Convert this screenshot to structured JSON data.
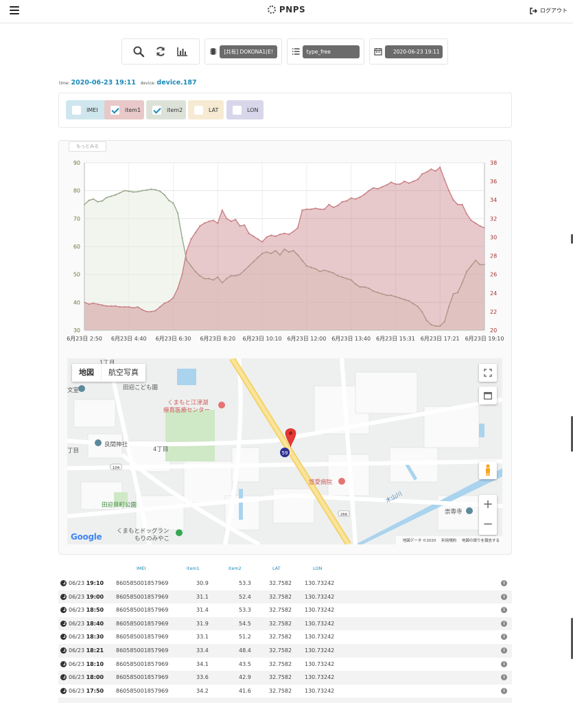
{
  "header": {
    "brand": "PNPS",
    "logout": "ログアウト"
  },
  "toolbar": {
    "icons": [
      "search-icon",
      "refresh-icon",
      "bar-chart-icon"
    ],
    "device_select": "[共有] DOKONA1(E!",
    "type_select": "type_free",
    "date_select": "2020-06-23 19:11"
  },
  "meta": {
    "time_label": "time:",
    "time_value": "2020-06-23 19:11",
    "device_label": "device:",
    "device_value": "device.187"
  },
  "checkboxes": [
    {
      "label": "IMEI",
      "checked": false,
      "color": "#cfe6ee"
    },
    {
      "label": "item1",
      "checked": true,
      "color": "#e8c8c8"
    },
    {
      "label": "item2",
      "checked": true,
      "color": "#dde2d8"
    },
    {
      "label": "LAT",
      "checked": false,
      "color": "#f6ead2"
    },
    {
      "label": "LON",
      "checked": false,
      "color": "#d8d6ea"
    }
  ],
  "more_button": "もっとみる",
  "chart_data": {
    "type": "area",
    "x_ticks": [
      "6月23日 2:50",
      "6月23日 4:40",
      "6月23日 6:30",
      "6月23日 8:20",
      "6月23日 10:10",
      "6月23日 12:00",
      "6月23日 13:40",
      "6月23日 15:31",
      "6月23日 17:21",
      "6月23日 19:10"
    ],
    "ylim_left": [
      30,
      90
    ],
    "yticks_left": [
      30,
      40,
      50,
      60,
      70,
      80,
      90
    ],
    "ylim_right": [
      20,
      38
    ],
    "yticks_right": [
      20,
      22,
      24,
      26,
      28,
      30,
      32,
      34,
      36,
      38
    ],
    "grid": true,
    "series": [
      {
        "name": "item1",
        "axis": "right",
        "color": "#c97f84",
        "values": [
          23.0,
          22.8,
          22.9,
          22.8,
          22.7,
          22.6,
          22.6,
          22.6,
          22.5,
          22.5,
          22.5,
          22.4,
          22.5,
          22.2,
          22.0,
          22.0,
          22.1,
          22.5,
          22.9,
          23.1,
          23.5,
          24.5,
          26.0,
          28.5,
          29.8,
          30.5,
          31.2,
          31.5,
          31.7,
          31.8,
          31.5,
          32.9,
          32.0,
          31.7,
          31.9,
          31.2,
          31.3,
          30.4,
          30.1,
          29.8,
          29.5,
          30.0,
          30.2,
          30.1,
          30.3,
          30.4,
          30.3,
          30.6,
          31.0,
          32.9,
          33.0,
          33.0,
          33.1,
          33.0,
          33.0,
          33.5,
          33.2,
          33.4,
          33.8,
          33.9,
          34.2,
          34.1,
          34.3,
          34.6,
          35.0,
          35.3,
          35.2,
          35.4,
          35.6,
          35.9,
          35.7,
          35.7,
          36.0,
          35.8,
          36.0,
          36.2,
          36.8,
          37.0,
          37.3,
          37.1,
          37.5,
          36.2,
          35.0,
          34.0,
          33.5,
          33.5,
          32.5,
          31.8,
          31.5,
          31.2,
          31.0
        ]
      },
      {
        "name": "item2",
        "axis": "left",
        "color": "#98a88c",
        "values": [
          75.0,
          76.5,
          77.0,
          76.0,
          76.3,
          77.5,
          78.0,
          78.5,
          79.2,
          80.0,
          79.8,
          79.5,
          79.6,
          80.0,
          80.2,
          80.5,
          80.3,
          79.8,
          78.5,
          76.5,
          75.5,
          72.0,
          63.0,
          55.0,
          53.0,
          51.0,
          49.5,
          48.5,
          48.5,
          48.0,
          49.0,
          47.0,
          48.5,
          49.5,
          49.5,
          50.0,
          51.5,
          53.0,
          54.5,
          56.0,
          57.5,
          58.0,
          57.5,
          58.5,
          57.0,
          59.0,
          58.0,
          58.5,
          57.0,
          55.0,
          53.0,
          52.5,
          52.0,
          51.0,
          51.5,
          51.0,
          50.5,
          49.5,
          49.0,
          48.5,
          48.0,
          46.5,
          45.5,
          45.5,
          45.0,
          44.0,
          43.5,
          43.0,
          42.5,
          42.5,
          42.0,
          41.5,
          41.0,
          40.5,
          39.5,
          38.5,
          36.5,
          33.5,
          32.0,
          31.5,
          31.5,
          33.0,
          38.5,
          43.0,
          43.5,
          47.0,
          51.0,
          53.0,
          55.0,
          53.5,
          53.5
        ]
      }
    ]
  },
  "map": {
    "type_buttons": [
      "地図",
      "航空写真"
    ],
    "labels": [
      "田迎こども園",
      "くまもと江津湖",
      "療育医療センター",
      "良間神社",
      "4丁目",
      "田迎良町公園",
      "悠愛病院",
      "木山川",
      "崇専寺",
      "くまもとドッグラン",
      "もりのみやこ",
      "文室",
      "1丁目",
      "丁目"
    ],
    "marker_number": "59",
    "road_badges": [
      "104",
      "266"
    ],
    "google": "Google",
    "attribution": [
      "地図データ ©2020",
      "利用規約",
      "地図の誤りを報告する"
    ]
  },
  "table": {
    "headers": [
      "IMEI",
      "item1",
      "item2",
      "LAT",
      "LON"
    ],
    "rows": [
      {
        "date": "06/23",
        "time": "19:10",
        "imei": "860585001857969",
        "item1": "30.9",
        "item2": "53.3",
        "lat": "32.7582",
        "lon": "130.73242"
      },
      {
        "date": "06/23",
        "time": "19:00",
        "imei": "860585001857969",
        "item1": "31.1",
        "item2": "52.4",
        "lat": "32.7582",
        "lon": "130.73242"
      },
      {
        "date": "06/23",
        "time": "18:50",
        "imei": "860585001857969",
        "item1": "31.4",
        "item2": "53.3",
        "lat": "32.7582",
        "lon": "130.73242"
      },
      {
        "date": "06/23",
        "time": "18:40",
        "imei": "860585001857969",
        "item1": "31.9",
        "item2": "54.5",
        "lat": "32.7582",
        "lon": "130.73242"
      },
      {
        "date": "06/23",
        "time": "18:30",
        "imei": "860585001857969",
        "item1": "33.1",
        "item2": "51.2",
        "lat": "32.7582",
        "lon": "130.73242"
      },
      {
        "date": "06/23",
        "time": "18:21",
        "imei": "860585001857969",
        "item1": "33.4",
        "item2": "48.4",
        "lat": "32.7582",
        "lon": "130.73242"
      },
      {
        "date": "06/23",
        "time": "18:10",
        "imei": "860585001857969",
        "item1": "34.1",
        "item2": "43.5",
        "lat": "32.7582",
        "lon": "130.73242"
      },
      {
        "date": "06/23",
        "time": "18:00",
        "imei": "860585001857969",
        "item1": "33.6",
        "item2": "42.9",
        "lat": "32.7582",
        "lon": "130.73242"
      },
      {
        "date": "06/23",
        "time": "17:50",
        "imei": "860585001857969",
        "item1": "34.2",
        "item2": "41.6",
        "lat": "32.7582",
        "lon": "130.73242"
      }
    ]
  }
}
